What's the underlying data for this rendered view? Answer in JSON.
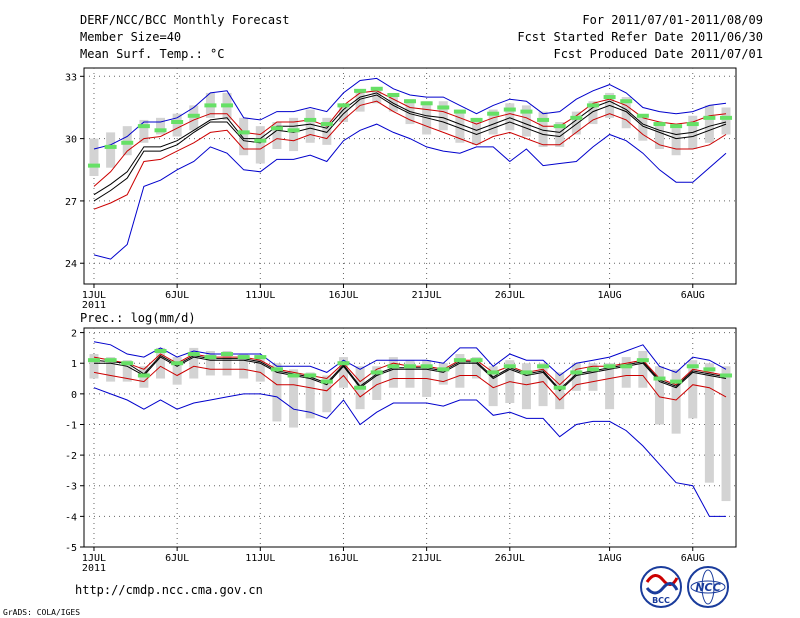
{
  "header": {
    "title_left": "DERF/NCC/BCC Monthly Forecast",
    "member_size": "Member Size=40",
    "variable": "Mean Surf. Temp.: °C",
    "period": "For 2011/07/01-2011/08/09",
    "refer_date": "Fcst Started Refer Date 2011/06/30",
    "produced_date": "Fcst Produced Date 2011/07/01"
  },
  "panel2_label": "Prec.: log(mm/d)",
  "footer": {
    "url": "http://cmdp.ncc.cma.gov.cn",
    "credit": "GrADS: COLA/IGES",
    "logo_bcc": "BCC",
    "logo_ncc": "NCC"
  },
  "colors": {
    "box": "#d3d3d3",
    "ensemble_mean": "#000000",
    "member_median": "#66e066",
    "spread_outer": "#0000cc",
    "spread_inner": "#cc0000",
    "grid": "#666666"
  },
  "x_ticks": {
    "days": [
      1,
      6,
      11,
      16,
      21,
      26,
      32,
      37
    ],
    "labels": [
      "1JUL",
      "6JUL",
      "11JUL",
      "16JUL",
      "21JUL",
      "26JUL",
      "1AUG",
      "6AUG"
    ],
    "year_label": "2011"
  },
  "chart_data": [
    {
      "type": "line",
      "title": "Mean Surf. Temp.: °C",
      "xlabel": "",
      "ylabel": "",
      "xlim": [
        0.4,
        39.6
      ],
      "ylim": [
        23,
        33.4
      ],
      "yticks": [
        24,
        27,
        30,
        33
      ],
      "ytick_labels": [
        "24",
        "27",
        "30",
        "33"
      ],
      "grid": true,
      "x": [
        1,
        2,
        3,
        4,
        5,
        6,
        7,
        8,
        9,
        10,
        11,
        12,
        13,
        14,
        15,
        16,
        17,
        18,
        19,
        20,
        21,
        22,
        23,
        24,
        25,
        26,
        27,
        28,
        29,
        30,
        31,
        32,
        33,
        34,
        35,
        36,
        37,
        38,
        39
      ],
      "box_low": [
        28.2,
        28.6,
        29.2,
        29.8,
        30.2,
        30.1,
        30.4,
        31.0,
        30.9,
        29.2,
        28.8,
        29.5,
        29.4,
        29.8,
        29.7,
        30.8,
        31.3,
        31.7,
        31.3,
        30.7,
        30.2,
        30.4,
        29.8,
        29.7,
        30.2,
        30.4,
        30.1,
        29.6,
        29.6,
        30.2,
        30.7,
        31.0,
        30.5,
        29.9,
        29.5,
        29.2,
        29.5,
        29.8,
        30.2
      ],
      "box_high": [
        30.0,
        30.3,
        30.6,
        30.9,
        31.0,
        31.2,
        31.6,
        32.2,
        32.2,
        31.0,
        30.6,
        30.8,
        31.0,
        31.4,
        31.0,
        31.7,
        32.3,
        32.4,
        32.2,
        31.9,
        31.8,
        31.8,
        31.4,
        31.0,
        31.4,
        31.7,
        31.6,
        31.3,
        30.8,
        31.3,
        31.8,
        32.2,
        32.0,
        31.1,
        30.7,
        30.5,
        31.1,
        31.6,
        31.5
      ],
      "series": [
        {
          "name": "upper bound",
          "role": "spread_outer",
          "values": [
            29.5,
            29.7,
            30.1,
            30.8,
            30.8,
            31.0,
            31.5,
            32.2,
            32.3,
            31.0,
            30.9,
            31.3,
            31.3,
            31.5,
            31.3,
            32.2,
            32.8,
            32.9,
            32.4,
            32.1,
            32.0,
            32.0,
            31.6,
            31.2,
            31.6,
            31.9,
            31.8,
            31.2,
            31.3,
            31.9,
            32.3,
            32.6,
            32.2,
            31.5,
            31.3,
            31.2,
            31.3,
            31.6,
            31.7
          ]
        },
        {
          "name": "upper inner",
          "role": "spread_inner",
          "values": [
            27.7,
            28.4,
            29.4,
            30.0,
            30.1,
            30.5,
            30.9,
            31.2,
            31.2,
            30.3,
            30.2,
            30.8,
            30.8,
            30.9,
            30.6,
            31.6,
            32.2,
            32.3,
            31.9,
            31.5,
            31.4,
            31.3,
            31.0,
            30.7,
            31.0,
            31.2,
            31.0,
            30.6,
            30.6,
            31.1,
            31.7,
            31.9,
            31.6,
            31.0,
            30.8,
            30.7,
            30.8,
            31.1,
            31.2
          ]
        },
        {
          "name": "ensemble mean",
          "role": "ensemble_mean",
          "values": [
            27.0,
            27.5,
            28.1,
            29.4,
            29.4,
            29.7,
            30.3,
            30.8,
            30.8,
            29.9,
            29.8,
            30.4,
            30.3,
            30.5,
            30.3,
            31.2,
            31.9,
            32.1,
            31.6,
            31.2,
            31.0,
            30.8,
            30.5,
            30.2,
            30.5,
            30.8,
            30.5,
            30.2,
            30.1,
            30.7,
            31.3,
            31.6,
            31.3,
            30.6,
            30.3,
            30.0,
            30.1,
            30.4,
            30.7
          ]
        },
        {
          "name": "ensemble mean (offset)",
          "role": "ensemble_mean",
          "values": [
            27.3,
            27.8,
            28.4,
            29.6,
            29.6,
            29.9,
            30.4,
            30.9,
            31.0,
            30.0,
            30.0,
            30.6,
            30.6,
            30.7,
            30.5,
            31.4,
            32.0,
            32.2,
            31.7,
            31.3,
            31.1,
            31.0,
            30.7,
            30.4,
            30.7,
            31.0,
            30.7,
            30.4,
            30.3,
            30.9,
            31.5,
            31.8,
            31.4,
            30.7,
            30.4,
            30.2,
            30.3,
            30.6,
            30.8
          ]
        },
        {
          "name": "lower inner",
          "role": "spread_inner",
          "values": [
            26.6,
            26.9,
            27.3,
            28.9,
            29.0,
            29.4,
            29.8,
            30.3,
            30.4,
            29.5,
            29.5,
            30.0,
            29.9,
            30.2,
            30.0,
            30.9,
            31.6,
            31.8,
            31.3,
            30.9,
            30.6,
            30.3,
            30.0,
            29.7,
            30.1,
            30.3,
            30.0,
            29.7,
            29.7,
            30.3,
            30.9,
            31.2,
            30.9,
            30.2,
            29.7,
            29.5,
            29.5,
            29.7,
            30.2
          ]
        },
        {
          "name": "lower bound",
          "role": "spread_outer",
          "values": [
            24.4,
            24.2,
            24.9,
            27.7,
            28.0,
            28.5,
            28.9,
            29.6,
            29.3,
            28.5,
            28.4,
            29.0,
            29.0,
            29.2,
            28.9,
            29.9,
            30.4,
            30.7,
            30.3,
            30.0,
            29.6,
            29.4,
            29.3,
            29.6,
            29.6,
            28.9,
            29.5,
            28.7,
            28.8,
            28.9,
            29.6,
            30.2,
            29.9,
            29.3,
            28.5,
            27.9,
            27.9,
            28.6,
            29.3
          ]
        }
      ],
      "member_median": [
        28.7,
        29.6,
        29.8,
        30.6,
        30.4,
        30.8,
        31.1,
        31.6,
        31.6,
        30.3,
        29.9,
        30.5,
        30.4,
        30.9,
        30.7,
        31.6,
        32.3,
        32.4,
        32.1,
        31.8,
        31.7,
        31.5,
        31.3,
        30.9,
        31.2,
        31.4,
        31.3,
        30.9,
        30.6,
        31.0,
        31.6,
        32.0,
        31.8,
        31.1,
        30.7,
        30.6,
        30.7,
        31.0,
        31.0
      ]
    },
    {
      "type": "line",
      "title": "Prec.: log(mm/d)",
      "xlabel": "",
      "ylabel": "",
      "xlim": [
        0.4,
        39.6
      ],
      "ylim": [
        -5,
        2.15
      ],
      "yticks": [
        -5,
        -4,
        -3,
        -2,
        -1,
        0,
        1,
        2
      ],
      "ytick_labels": [
        "-5",
        "-4",
        "-3",
        "-2",
        "-1",
        "0",
        "1",
        "2"
      ],
      "grid": true,
      "x": [
        1,
        2,
        3,
        4,
        5,
        6,
        7,
        8,
        9,
        10,
        11,
        12,
        13,
        14,
        15,
        16,
        17,
        18,
        19,
        20,
        21,
        22,
        23,
        24,
        25,
        26,
        27,
        28,
        29,
        30,
        31,
        32,
        33,
        34,
        35,
        36,
        37,
        38,
        39
      ],
      "box_low": [
        0.5,
        0.4,
        0.4,
        0.2,
        0.5,
        0.3,
        0.5,
        0.6,
        0.6,
        0.5,
        0.4,
        -0.9,
        -1.1,
        -0.8,
        -0.6,
        0.2,
        -0.5,
        -0.2,
        0.2,
        0.2,
        -0.1,
        0.3,
        0.2,
        0.5,
        -0.4,
        -0.3,
        -0.5,
        -0.4,
        -0.5,
        0.1,
        0.1,
        -0.5,
        0.2,
        0.2,
        -1.0,
        -1.3,
        -0.8,
        -2.9,
        -3.5
      ],
      "box_high": [
        1.3,
        1.2,
        1.1,
        0.9,
        1.5,
        1.2,
        1.5,
        1.4,
        1.4,
        1.3,
        1.2,
        1.0,
        0.8,
        0.7,
        0.6,
        1.2,
        0.9,
        0.9,
        1.2,
        1.1,
        1.1,
        1.0,
        1.3,
        1.2,
        0.9,
        1.1,
        1.0,
        1.0,
        0.7,
        1.0,
        1.0,
        1.0,
        1.2,
        1.4,
        0.9,
        0.8,
        1.1,
        1.0,
        0.9
      ],
      "series": [
        {
          "name": "upper bound",
          "role": "spread_outer",
          "values": [
            1.7,
            1.6,
            1.3,
            1.2,
            1.5,
            1.2,
            1.4,
            1.3,
            1.3,
            1.3,
            1.3,
            0.9,
            0.9,
            0.9,
            0.7,
            1.1,
            0.8,
            1.1,
            1.1,
            1.1,
            1.1,
            1.0,
            1.5,
            1.5,
            0.9,
            1.3,
            1.1,
            1.1,
            0.6,
            1.0,
            1.1,
            1.2,
            1.4,
            1.6,
            0.9,
            0.7,
            1.2,
            1.1,
            0.8
          ]
        },
        {
          "name": "upper inner",
          "role": "spread_inner",
          "values": [
            1.2,
            1.1,
            1.0,
            0.8,
            1.3,
            1.0,
            1.3,
            1.2,
            1.2,
            1.2,
            1.1,
            0.8,
            0.7,
            0.6,
            0.5,
            1.0,
            0.4,
            0.8,
            1.0,
            0.9,
            0.9,
            0.8,
            1.1,
            1.1,
            0.7,
            0.9,
            0.7,
            0.8,
            0.3,
            0.8,
            0.9,
            0.9,
            1.0,
            1.1,
            0.5,
            0.3,
            0.8,
            0.7,
            0.6
          ]
        },
        {
          "name": "ensemble mean",
          "role": "ensemble_mean",
          "values": [
            1.0,
            1.0,
            0.9,
            0.6,
            1.2,
            0.9,
            1.2,
            1.1,
            1.1,
            1.1,
            1.0,
            0.7,
            0.6,
            0.5,
            0.3,
            0.9,
            0.2,
            0.6,
            0.8,
            0.8,
            0.8,
            0.7,
            1.0,
            1.0,
            0.5,
            0.8,
            0.6,
            0.7,
            0.1,
            0.6,
            0.7,
            0.8,
            0.9,
            1.0,
            0.4,
            0.2,
            0.7,
            0.6,
            0.5
          ]
        },
        {
          "name": "ensemble mean (offset)",
          "role": "ensemble_mean",
          "values": [
            1.1,
            1.05,
            1.0,
            0.65,
            1.25,
            0.95,
            1.25,
            1.15,
            1.15,
            1.15,
            1.05,
            0.75,
            0.65,
            0.55,
            0.35,
            0.95,
            0.25,
            0.65,
            0.85,
            0.85,
            0.85,
            0.75,
            1.05,
            1.05,
            0.55,
            0.85,
            0.65,
            0.75,
            0.15,
            0.65,
            0.75,
            0.85,
            0.95,
            1.05,
            0.45,
            0.25,
            0.75,
            0.65,
            0.55
          ]
        },
        {
          "name": "lower inner",
          "role": "spread_inner",
          "values": [
            0.7,
            0.6,
            0.5,
            0.4,
            0.9,
            0.6,
            0.9,
            0.8,
            0.8,
            0.8,
            0.7,
            0.3,
            0.3,
            0.2,
            0.1,
            0.6,
            -0.1,
            0.3,
            0.5,
            0.5,
            0.5,
            0.4,
            0.6,
            0.6,
            0.2,
            0.4,
            0.3,
            0.4,
            -0.2,
            0.3,
            0.4,
            0.5,
            0.6,
            0.6,
            -0.1,
            -0.2,
            0.3,
            0.2,
            -0.1
          ]
        },
        {
          "name": "lower bound",
          "role": "spread_outer",
          "values": [
            0.2,
            0.0,
            -0.2,
            -0.5,
            -0.2,
            -0.5,
            -0.3,
            -0.2,
            -0.1,
            0.0,
            0.0,
            -0.1,
            -0.5,
            -0.6,
            -0.8,
            -0.2,
            -1.0,
            -0.6,
            -0.3,
            -0.3,
            -0.3,
            -0.4,
            -0.2,
            -0.2,
            -0.7,
            -0.6,
            -0.8,
            -0.8,
            -1.4,
            -1.0,
            -0.9,
            -0.9,
            -1.2,
            -1.7,
            -2.3,
            -2.9,
            -3.0,
            -4.0,
            -4.0
          ]
        }
      ],
      "member_median": [
        1.1,
        1.1,
        1.0,
        0.6,
        1.4,
        1.0,
        1.3,
        1.2,
        1.3,
        1.2,
        1.2,
        0.8,
        0.6,
        0.6,
        0.4,
        1.0,
        0.2,
        0.7,
        0.9,
        0.9,
        0.9,
        0.8,
        1.1,
        1.1,
        0.7,
        0.9,
        0.7,
        0.9,
        0.2,
        0.7,
        0.8,
        0.9,
        0.9,
        1.1,
        0.5,
        0.4,
        0.9,
        0.8,
        0.6
      ]
    }
  ]
}
